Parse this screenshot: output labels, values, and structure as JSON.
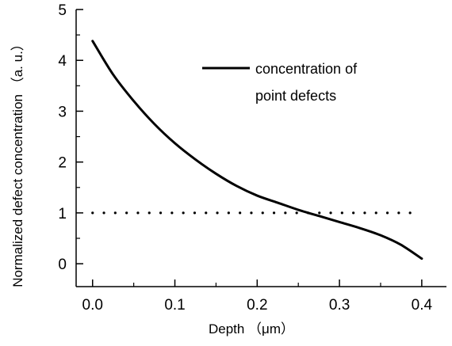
{
  "chart_data": {
    "type": "line",
    "title": "",
    "xlabel": "Depth （μm）",
    "ylabel": "Normalized defect concentration （a. u.）",
    "xlim": [
      -0.02,
      0.43
    ],
    "ylim": [
      -0.45,
      5.0
    ],
    "x_ticks": [
      "0.0",
      "0.1",
      "0.2",
      "0.3",
      "0.4"
    ],
    "y_ticks": [
      "0",
      "1",
      "2",
      "3",
      "4",
      "5"
    ],
    "grid": false,
    "legend_position": "top-right",
    "series": [
      {
        "name": "concentration of point defects",
        "style": "solid",
        "color": "#000000",
        "x": [
          0.0,
          0.025,
          0.05,
          0.075,
          0.1,
          0.125,
          0.15,
          0.175,
          0.2,
          0.225,
          0.25,
          0.275,
          0.3,
          0.325,
          0.35,
          0.375,
          0.4
        ],
        "y": [
          4.38,
          3.72,
          3.2,
          2.75,
          2.37,
          2.05,
          1.77,
          1.53,
          1.34,
          1.2,
          1.06,
          0.94,
          0.82,
          0.7,
          0.56,
          0.37,
          0.1
        ]
      },
      {
        "style": "dotted",
        "color": "#000000",
        "x": [
          0.0,
          0.39
        ],
        "y": [
          1.0,
          1.0
        ]
      }
    ],
    "legend_lines": [
      "concentration of",
      "point defects"
    ]
  }
}
